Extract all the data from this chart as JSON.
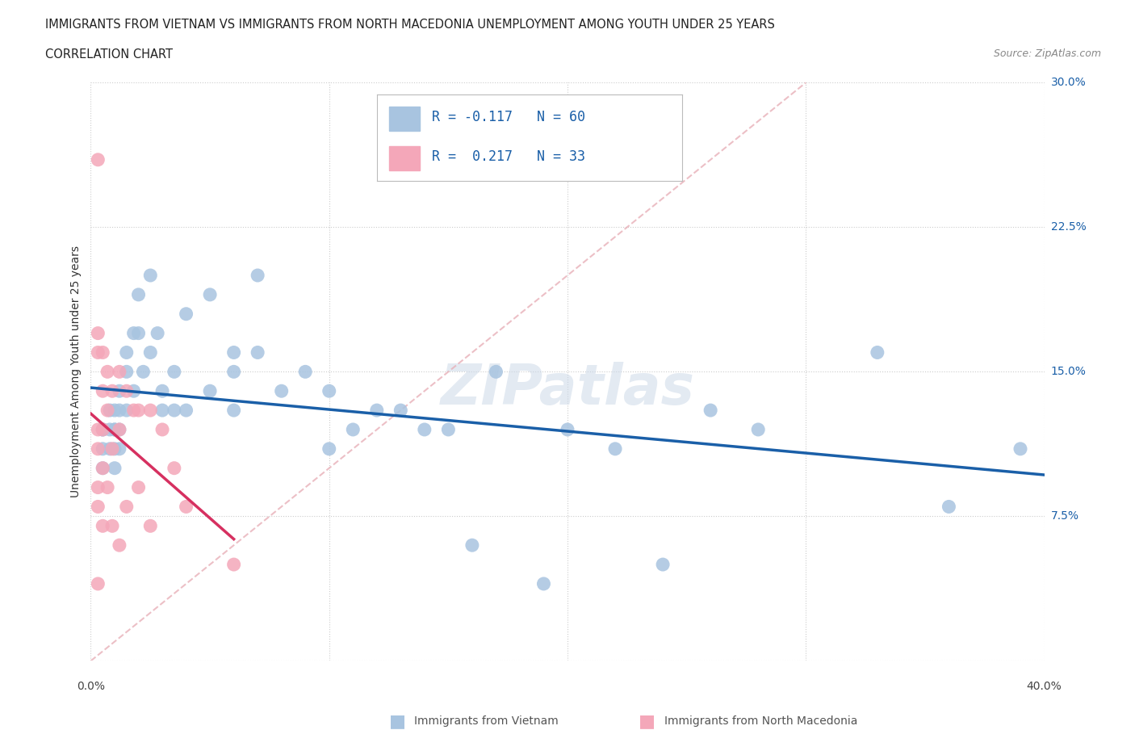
{
  "title_line1": "IMMIGRANTS FROM VIETNAM VS IMMIGRANTS FROM NORTH MACEDONIA UNEMPLOYMENT AMONG YOUTH UNDER 25 YEARS",
  "title_line2": "CORRELATION CHART",
  "source": "Source: ZipAtlas.com",
  "ylabel": "Unemployment Among Youth under 25 years",
  "xlim": [
    0.0,
    0.4
  ],
  "ylim": [
    0.0,
    0.3
  ],
  "color_vietnam": "#a8c4e0",
  "color_nmacedonia": "#f4a7b9",
  "trendline_vietnam_color": "#1a5fa8",
  "trendline_nmacedonia_color": "#d63060",
  "diagonal_color": "#e8b0b8",
  "R_vietnam": -0.117,
  "N_vietnam": 60,
  "R_nmacedonia": 0.217,
  "N_nmacedonia": 33,
  "legend_text_color": "#1a5fa8",
  "watermark": "ZIPatlas",
  "vietnam_x": [
    0.005,
    0.005,
    0.005,
    0.005,
    0.008,
    0.008,
    0.008,
    0.01,
    0.01,
    0.01,
    0.01,
    0.01,
    0.012,
    0.012,
    0.012,
    0.012,
    0.015,
    0.015,
    0.015,
    0.018,
    0.018,
    0.02,
    0.02,
    0.022,
    0.025,
    0.025,
    0.028,
    0.03,
    0.03,
    0.035,
    0.035,
    0.04,
    0.04,
    0.05,
    0.05,
    0.06,
    0.06,
    0.06,
    0.07,
    0.07,
    0.08,
    0.09,
    0.1,
    0.1,
    0.11,
    0.12,
    0.13,
    0.14,
    0.15,
    0.16,
    0.17,
    0.19,
    0.2,
    0.22,
    0.24,
    0.26,
    0.28,
    0.33,
    0.36,
    0.39
  ],
  "vietnam_y": [
    0.12,
    0.12,
    0.11,
    0.1,
    0.13,
    0.12,
    0.11,
    0.13,
    0.12,
    0.12,
    0.11,
    0.1,
    0.14,
    0.13,
    0.12,
    0.11,
    0.16,
    0.15,
    0.13,
    0.17,
    0.14,
    0.19,
    0.17,
    0.15,
    0.2,
    0.16,
    0.17,
    0.14,
    0.13,
    0.15,
    0.13,
    0.18,
    0.13,
    0.19,
    0.14,
    0.16,
    0.15,
    0.13,
    0.2,
    0.16,
    0.14,
    0.15,
    0.14,
    0.11,
    0.12,
    0.13,
    0.13,
    0.12,
    0.12,
    0.06,
    0.15,
    0.04,
    0.12,
    0.11,
    0.05,
    0.13,
    0.12,
    0.16,
    0.08,
    0.11
  ],
  "nmacedonia_x": [
    0.003,
    0.003,
    0.003,
    0.003,
    0.003,
    0.003,
    0.003,
    0.003,
    0.005,
    0.005,
    0.005,
    0.005,
    0.005,
    0.007,
    0.007,
    0.007,
    0.009,
    0.009,
    0.009,
    0.012,
    0.012,
    0.012,
    0.015,
    0.015,
    0.018,
    0.02,
    0.02,
    0.025,
    0.025,
    0.03,
    0.035,
    0.04,
    0.06
  ],
  "nmacedonia_y": [
    0.26,
    0.17,
    0.16,
    0.12,
    0.11,
    0.09,
    0.08,
    0.04,
    0.16,
    0.14,
    0.12,
    0.1,
    0.07,
    0.15,
    0.13,
    0.09,
    0.14,
    0.11,
    0.07,
    0.15,
    0.12,
    0.06,
    0.14,
    0.08,
    0.13,
    0.13,
    0.09,
    0.13,
    0.07,
    0.12,
    0.1,
    0.08,
    0.05
  ]
}
